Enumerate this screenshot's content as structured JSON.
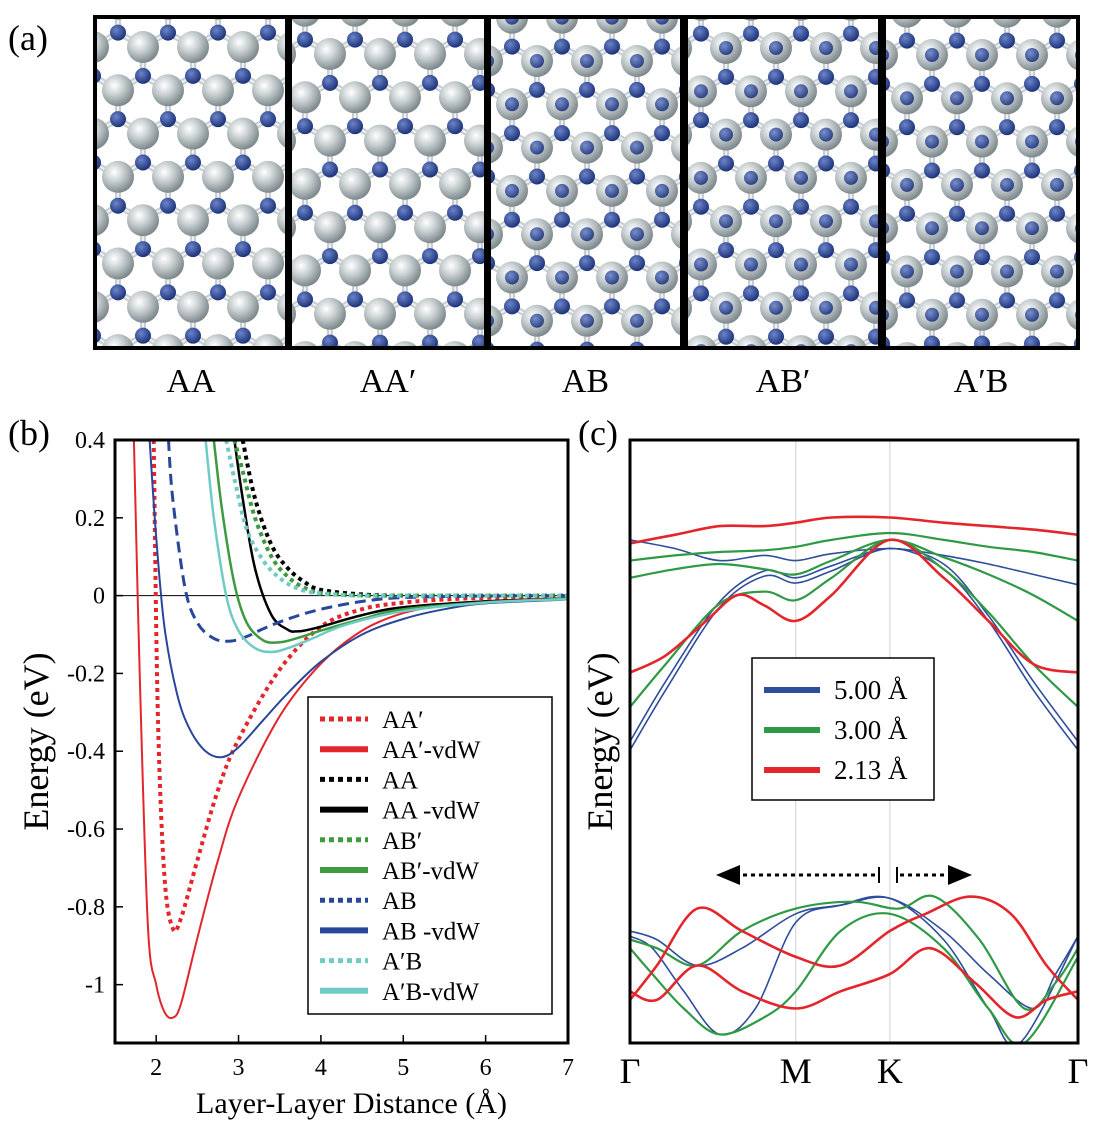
{
  "panel_labels": {
    "a": "(a)",
    "b": "(b)",
    "c": "(c)"
  },
  "colors": {
    "nitrogen": "#2b4a9a",
    "boron": "#b9c2c4",
    "bond": "#c8cdd0",
    "frame": "#000000",
    "red": "#e3262c",
    "black": "#000000",
    "green": "#3c9a3f",
    "blue": "#28479b",
    "cyan": "#6fcbc4",
    "band_red": "#e3262c",
    "band_green": "#2f9a45",
    "band_blue": "#2e4d9c"
  },
  "structures": [
    {
      "label": "AA",
      "stacking": "AA"
    },
    {
      "label": "AA′",
      "stacking": "AAp"
    },
    {
      "label": "AB",
      "stacking": "AB"
    },
    {
      "label": "AB′",
      "stacking": "ABp"
    },
    {
      "label": "A′B",
      "stacking": "ApB"
    }
  ],
  "chart_data": [
    {
      "type": "line",
      "panel": "b",
      "xlabel": "Layer-Layer Distance (Å)",
      "ylabel": "Energy (eV)",
      "xlim": [
        1.5,
        7
      ],
      "ylim": [
        -1.15,
        0.4
      ],
      "xticks": [
        2,
        3,
        4,
        5,
        6,
        7
      ],
      "yticks": [
        0.4,
        0.2,
        0,
        -0.2,
        -0.4,
        -0.6,
        -0.8,
        -1
      ],
      "ytick_labels": [
        "0.4",
        "0.2",
        "0",
        "-0.2",
        "-0.4",
        "-0.6",
        "-0.8",
        "-1"
      ],
      "legend_position": "lower-right",
      "series": [
        {
          "name": "AA′",
          "color_key": "red",
          "dash": "dotted",
          "width": 4,
          "x": [
            1.97,
            2.02,
            2.1,
            2.2,
            2.3,
            2.5,
            2.75,
            3.0,
            3.5,
            4.0,
            4.5,
            5.0,
            5.5,
            6.0,
            7.0
          ],
          "y": [
            0.4,
            -0.3,
            -0.72,
            -0.855,
            -0.83,
            -0.68,
            -0.5,
            -0.37,
            -0.19,
            -0.08,
            -0.035,
            -0.018,
            -0.01,
            -0.006,
            -0.003
          ]
        },
        {
          "name": "AA′-vdW",
          "color_key": "red",
          "dash": "solid",
          "width": 2,
          "x": [
            1.73,
            1.8,
            1.9,
            2.0,
            2.1,
            2.2,
            2.3,
            2.5,
            2.75,
            3.0,
            3.5,
            4.0,
            4.5,
            5.0,
            5.5,
            6.0,
            7.0
          ],
          "y": [
            0.4,
            -0.2,
            -0.85,
            -1.0,
            -1.07,
            -1.085,
            -1.05,
            -0.88,
            -0.68,
            -0.52,
            -0.31,
            -0.175,
            -0.09,
            -0.045,
            -0.025,
            -0.014,
            -0.006
          ]
        },
        {
          "name": "AA",
          "color_key": "black",
          "dash": "dotted",
          "width": 4,
          "x": [
            3.05,
            3.2,
            3.4,
            3.6,
            3.8,
            4.0,
            4.5,
            5.0,
            6.0,
            7.0
          ],
          "y": [
            0.4,
            0.25,
            0.13,
            0.07,
            0.035,
            0.015,
            0.003,
            0.0,
            0.0,
            0.0
          ]
        },
        {
          "name": "AA -vdW",
          "color_key": "black",
          "dash": "solid",
          "width": 2.5,
          "x": [
            2.95,
            3.05,
            3.2,
            3.4,
            3.6,
            3.7,
            3.8,
            4.0,
            4.5,
            5.0,
            6.0,
            7.0
          ],
          "y": [
            0.4,
            0.25,
            0.07,
            -0.05,
            -0.088,
            -0.092,
            -0.09,
            -0.08,
            -0.05,
            -0.03,
            -0.015,
            -0.008
          ]
        },
        {
          "name": "AB′",
          "color_key": "green",
          "dash": "dotted",
          "width": 4,
          "x": [
            2.95,
            3.05,
            3.2,
            3.4,
            3.6,
            3.8,
            4.0,
            4.5,
            5.0,
            6.0,
            7.0
          ],
          "y": [
            0.4,
            0.32,
            0.2,
            0.1,
            0.048,
            0.02,
            0.007,
            0.0,
            0.0,
            0.0,
            0.0
          ]
        },
        {
          "name": "AB′-vdW",
          "color_key": "green",
          "dash": "solid",
          "width": 2.5,
          "x": [
            2.7,
            2.8,
            2.95,
            3.1,
            3.3,
            3.5,
            3.7,
            4.0,
            4.5,
            5.0,
            6.0,
            7.0
          ],
          "y": [
            0.4,
            0.22,
            0.03,
            -0.07,
            -0.115,
            -0.12,
            -0.11,
            -0.09,
            -0.06,
            -0.035,
            -0.017,
            -0.008
          ]
        },
        {
          "name": "AB",
          "color_key": "blue",
          "dash": "dashed",
          "width": 3,
          "x": [
            2.15,
            2.2,
            2.35,
            2.5,
            2.7,
            2.9,
            3.1,
            3.3,
            3.6,
            4.0,
            4.5,
            5.0,
            6.0,
            7.0
          ],
          "y": [
            0.4,
            0.25,
            0.02,
            -0.07,
            -0.11,
            -0.117,
            -0.105,
            -0.085,
            -0.06,
            -0.035,
            -0.015,
            -0.005,
            -0.001,
            0.0
          ]
        },
        {
          "name": "AB -vdW",
          "color_key": "blue",
          "dash": "solid",
          "width": 2,
          "x": [
            1.92,
            2.0,
            2.1,
            2.25,
            2.4,
            2.6,
            2.8,
            3.0,
            3.3,
            3.6,
            4.0,
            4.5,
            5.0,
            5.5,
            6.0,
            7.0
          ],
          "y": [
            0.4,
            0.15,
            -0.08,
            -0.25,
            -0.34,
            -0.4,
            -0.415,
            -0.39,
            -0.32,
            -0.25,
            -0.17,
            -0.1,
            -0.06,
            -0.035,
            -0.02,
            -0.01
          ]
        },
        {
          "name": "A′B",
          "color_key": "cyan",
          "dash": "dotted",
          "width": 4,
          "x": [
            2.85,
            2.95,
            3.1,
            3.3,
            3.5,
            3.7,
            3.9,
            4.2,
            4.6,
            5.0,
            6.0,
            7.0
          ],
          "y": [
            0.4,
            0.3,
            0.17,
            0.09,
            0.045,
            0.02,
            0.008,
            0.002,
            0.0,
            0.0,
            0.0,
            0.0
          ]
        },
        {
          "name": "A′B-vdW",
          "color_key": "cyan",
          "dash": "solid",
          "width": 2.5,
          "x": [
            2.6,
            2.7,
            2.85,
            3.0,
            3.2,
            3.4,
            3.6,
            3.9,
            4.3,
            5.0,
            6.0,
            7.0
          ],
          "y": [
            0.4,
            0.2,
            0.0,
            -0.09,
            -0.135,
            -0.145,
            -0.135,
            -0.11,
            -0.075,
            -0.04,
            -0.018,
            -0.009
          ]
        }
      ]
    },
    {
      "type": "line",
      "panel": "c",
      "title": "",
      "xlabel": "",
      "ylabel": "Energy (eV)",
      "k_points": [
        "Γ",
        "M",
        "K",
        "Γ"
      ],
      "k_positions": [
        0,
        0.37,
        0.58,
        1.0
      ],
      "xlim": [
        0,
        1
      ],
      "ylim": [
        -2.5,
        1.0
      ],
      "legend_position": "center",
      "legend": [
        {
          "label": "5.00 Å",
          "color_key": "band_blue"
        },
        {
          "label": "3.00 Å",
          "color_key": "band_green"
        },
        {
          "label": "2.13 Å",
          "color_key": "band_red"
        }
      ],
      "series": [
        {
          "name": "5.00 Å CB1",
          "color_key": "band_blue",
          "width": 1.6,
          "x": [
            0,
            0.08,
            0.2,
            0.3,
            0.37,
            0.45,
            0.58,
            0.7,
            0.8,
            0.9,
            1.0
          ],
          "y": [
            -0.8,
            -0.45,
            0.03,
            0.21,
            0.17,
            0.24,
            0.37,
            0.25,
            -0.05,
            -0.45,
            -0.8
          ]
        },
        {
          "name": "5.00 Å CB2",
          "color_key": "band_blue",
          "width": 1.6,
          "x": [
            0,
            0.08,
            0.2,
            0.3,
            0.37,
            0.45,
            0.58,
            0.7,
            0.8,
            0.9,
            1.0
          ],
          "y": [
            -0.75,
            -0.4,
            0.06,
            0.24,
            0.2,
            0.27,
            0.37,
            0.28,
            -0.02,
            -0.4,
            -0.75
          ]
        },
        {
          "name": "5.00 Å CB3",
          "color_key": "band_blue",
          "width": 1.6,
          "x": [
            0,
            0.1,
            0.2,
            0.3,
            0.37,
            0.45,
            0.58,
            0.7,
            0.8,
            0.9,
            1.0
          ],
          "y": [
            0.42,
            0.37,
            0.3,
            0.33,
            0.3,
            0.34,
            0.37,
            0.33,
            0.28,
            0.22,
            0.16
          ]
        },
        {
          "name": "5.00 Å VB1",
          "color_key": "band_blue",
          "width": 1.6,
          "x": [
            0,
            0.06,
            0.15,
            0.25,
            0.37,
            0.47,
            0.58,
            0.7,
            0.8,
            0.9,
            0.95,
            1.0
          ],
          "y": [
            -1.85,
            -1.9,
            -2.05,
            -1.95,
            -1.75,
            -1.7,
            -1.66,
            -1.85,
            -2.1,
            -2.3,
            -2.1,
            -1.88
          ]
        },
        {
          "name": "5.00 Å VB2",
          "color_key": "band_blue",
          "width": 1.6,
          "x": [
            0,
            0.05,
            0.12,
            0.2,
            0.28,
            0.37,
            0.47,
            0.58,
            0.7,
            0.8,
            0.87,
            1.0
          ],
          "y": [
            -1.88,
            -1.95,
            -2.2,
            -2.45,
            -2.3,
            -1.8,
            -1.7,
            -1.66,
            -1.9,
            -2.3,
            -2.5,
            -1.88
          ]
        },
        {
          "name": "3.00 Å CB1",
          "color_key": "band_green",
          "width": 2.2,
          "x": [
            0,
            0.08,
            0.2,
            0.3,
            0.37,
            0.45,
            0.58,
            0.7,
            0.8,
            0.9,
            1.0
          ],
          "y": [
            -0.55,
            -0.3,
            0.05,
            0.12,
            0.07,
            0.2,
            0.42,
            0.25,
            0.0,
            -0.3,
            -0.55
          ]
        },
        {
          "name": "3.00 Å CB2",
          "color_key": "band_green",
          "width": 2.2,
          "x": [
            0,
            0.1,
            0.2,
            0.3,
            0.37,
            0.45,
            0.58,
            0.7,
            0.8,
            0.9,
            1.0
          ],
          "y": [
            0.2,
            0.25,
            0.28,
            0.25,
            0.22,
            0.3,
            0.42,
            0.32,
            0.22,
            0.1,
            -0.05
          ]
        },
        {
          "name": "3.00 Å CB3",
          "color_key": "band_green",
          "width": 2.2,
          "x": [
            0,
            0.1,
            0.2,
            0.3,
            0.37,
            0.45,
            0.58,
            0.7,
            0.8,
            0.9,
            1.0
          ],
          "y": [
            0.3,
            0.33,
            0.35,
            0.36,
            0.38,
            0.42,
            0.46,
            0.42,
            0.38,
            0.35,
            0.3
          ]
        },
        {
          "name": "3.00 Å VB1",
          "color_key": "band_green",
          "width": 2.2,
          "x": [
            0,
            0.06,
            0.15,
            0.25,
            0.37,
            0.5,
            0.6,
            0.68,
            0.78,
            0.88,
            0.95,
            1.0
          ],
          "y": [
            -1.9,
            -1.95,
            -2.05,
            -1.85,
            -1.72,
            -1.68,
            -1.72,
            -1.65,
            -1.9,
            -2.3,
            -2.15,
            -1.95
          ]
        },
        {
          "name": "3.00 Å VB2",
          "color_key": "band_green",
          "width": 2.2,
          "x": [
            0,
            0.05,
            0.12,
            0.2,
            0.3,
            0.37,
            0.47,
            0.58,
            0.7,
            0.8,
            0.88,
            1.0
          ],
          "y": [
            -1.95,
            -2.1,
            -2.3,
            -2.45,
            -2.35,
            -2.2,
            -1.85,
            -1.75,
            -1.95,
            -2.3,
            -2.5,
            -2.0
          ]
        },
        {
          "name": "2.13 Å CB1",
          "color_key": "band_red",
          "width": 2.6,
          "x": [
            0,
            0.08,
            0.17,
            0.24,
            0.3,
            0.37,
            0.45,
            0.58,
            0.7,
            0.8,
            0.9,
            1.0
          ],
          "y": [
            -0.35,
            -0.25,
            -0.05,
            0.1,
            0.04,
            -0.05,
            0.1,
            0.42,
            0.2,
            -0.05,
            -0.3,
            -0.35
          ]
        },
        {
          "name": "2.13 Å CB2",
          "color_key": "band_red",
          "width": 2.6,
          "x": [
            0,
            0.1,
            0.2,
            0.3,
            0.37,
            0.45,
            0.58,
            0.7,
            0.8,
            0.9,
            1.0
          ],
          "y": [
            0.4,
            0.45,
            0.5,
            0.5,
            0.52,
            0.55,
            0.55,
            0.52,
            0.5,
            0.48,
            0.45
          ]
        },
        {
          "name": "2.13 Å VB1",
          "color_key": "band_red",
          "width": 2.6,
          "x": [
            0,
            0.06,
            0.15,
            0.25,
            0.37,
            0.47,
            0.58,
            0.66,
            0.76,
            0.85,
            0.93,
            1.0
          ],
          "y": [
            -2.25,
            -2.05,
            -1.72,
            -1.85,
            -2.0,
            -2.05,
            -1.85,
            -1.75,
            -1.65,
            -1.75,
            -2.05,
            -2.25
          ]
        },
        {
          "name": "2.13 Å VB2",
          "color_key": "band_red",
          "width": 2.6,
          "x": [
            0,
            0.06,
            0.15,
            0.25,
            0.37,
            0.47,
            0.58,
            0.67,
            0.77,
            0.86,
            0.93,
            1.0
          ],
          "y": [
            -2.2,
            -2.25,
            -2.05,
            -2.2,
            -2.3,
            -2.2,
            -2.1,
            -1.95,
            -2.15,
            -2.35,
            -2.25,
            -2.2
          ]
        }
      ],
      "arrow_annotation": {
        "style": "dotted double-headed arrows pointing away from K"
      }
    }
  ]
}
